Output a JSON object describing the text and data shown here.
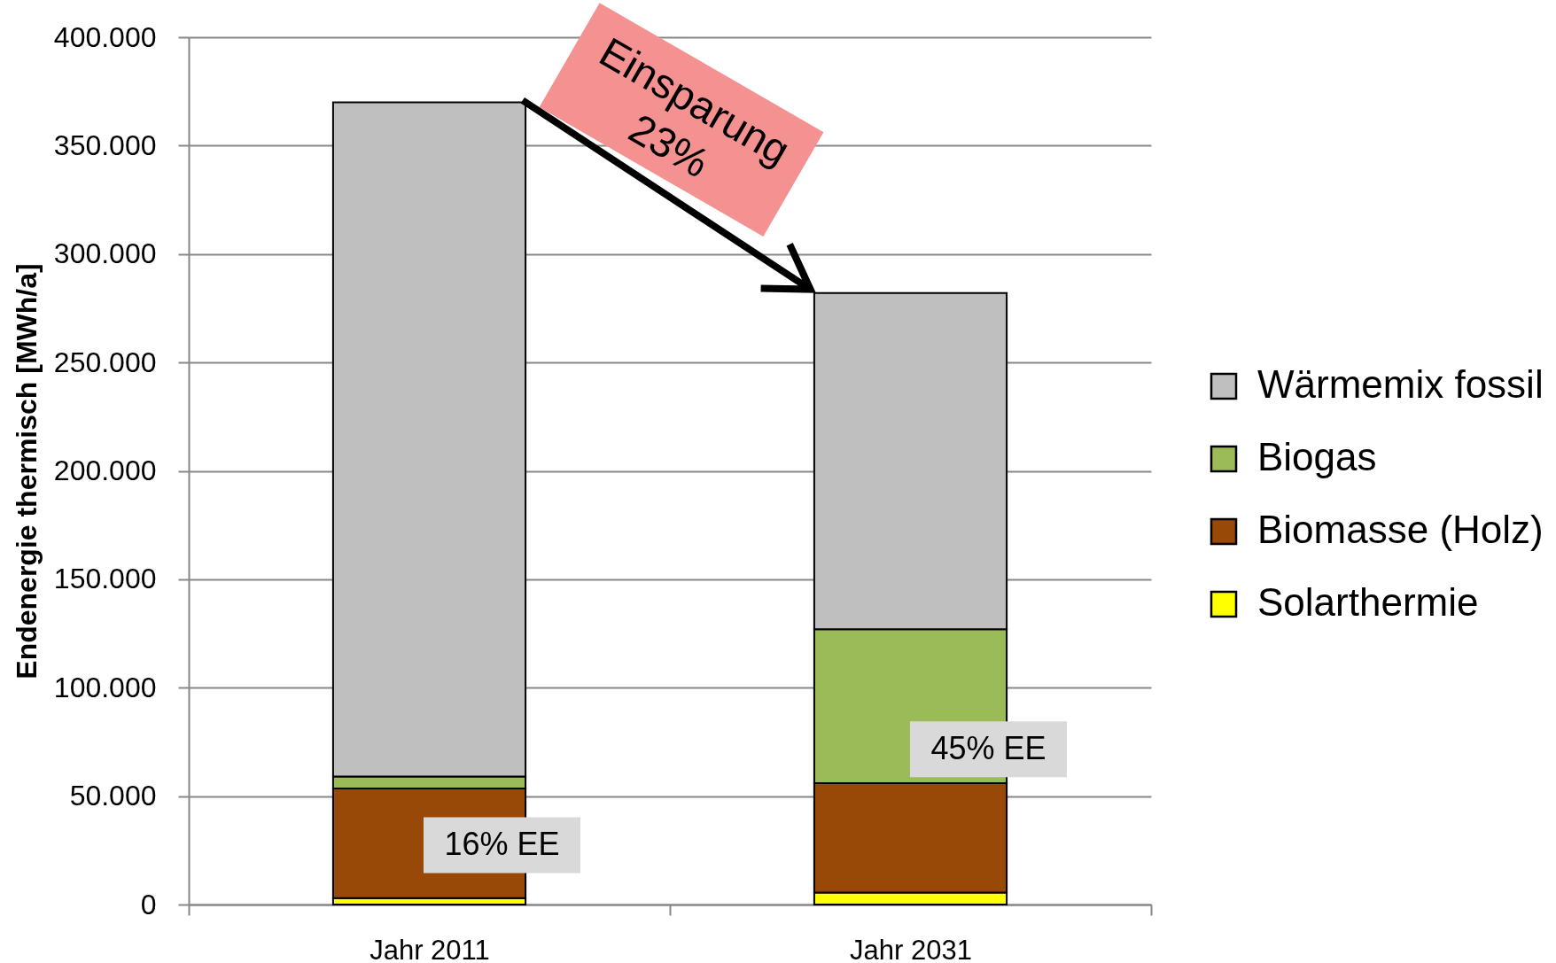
{
  "chart_data": {
    "type": "bar",
    "ylabel": "Endenergie thermisch [MWh/a]",
    "categories": [
      "Jahr 2011",
      "Jahr 2031"
    ],
    "series": [
      {
        "name": "Solarthermie",
        "color": "#ffff00",
        "values": [
          3000,
          5500
        ]
      },
      {
        "name": "Biomasse (Holz)",
        "color": "#984807",
        "values": [
          50500,
          50500
        ]
      },
      {
        "name": "Biogas",
        "color": "#9bbb59",
        "values": [
          5500,
          71000
        ]
      },
      {
        "name": "Wärmemix fossil",
        "color": "#bfbfbf",
        "values": [
          311000,
          155000
        ]
      }
    ],
    "stacked": true,
    "ylim": [
      0,
      400000
    ],
    "yticks": [
      0,
      {
        "value": 50000,
        "label": "50.000"
      },
      {
        "value": 100000,
        "label": "100.000"
      },
      {
        "value": 150000,
        "label": "150.000"
      },
      {
        "value": 200000,
        "label": "200.000"
      },
      {
        "value": 250000,
        "label": "250.000"
      },
      {
        "value": 300000,
        "label": "300.000"
      },
      {
        "value": 350000,
        "label": "350.000"
      },
      {
        "value": 400000,
        "label": "400.000"
      }
    ],
    "grid": "y",
    "legend": "right",
    "annotations": [
      "Einsparung\n23%",
      "16% EE",
      "45% EE"
    ]
  }
}
